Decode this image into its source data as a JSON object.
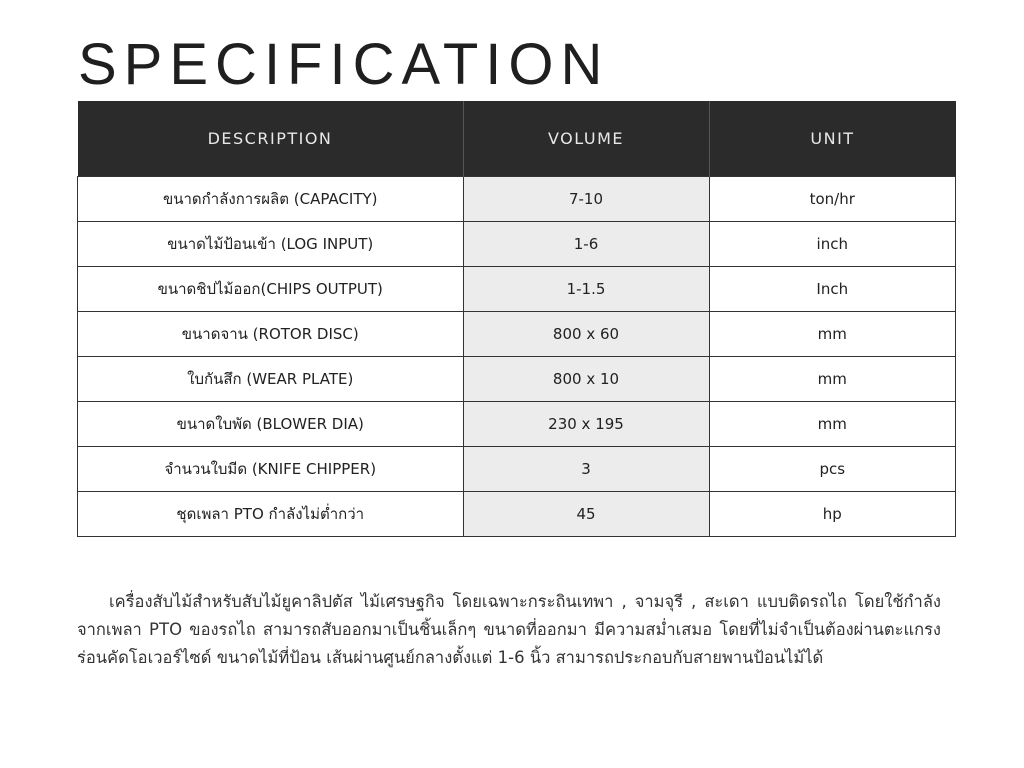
{
  "title": "SPECIFICATION",
  "table": {
    "headers": [
      "DESCRIPTION",
      "VOLUME",
      "UNIT"
    ],
    "rows": [
      {
        "description": "ขนาดกำลังการผลิต (CAPACITY)",
        "volume": "7-10",
        "unit": "ton/hr"
      },
      {
        "description": "ขนาดไม้ป้อนเข้า (LOG INPUT)",
        "volume": "1-6",
        "unit": "inch"
      },
      {
        "description": "ขนาดชิปไม้ออก(CHIPS OUTPUT)",
        "volume": "1-1.5",
        "unit": "Inch"
      },
      {
        "description": "ขนาดจาน (ROTOR DISC)",
        "volume": "800 x 60",
        "unit": "mm"
      },
      {
        "description": "ใบกันสึก (WEAR PLATE)",
        "volume": "800 x 10",
        "unit": "mm"
      },
      {
        "description": "ขนาดใบพัด (BLOWER DIA)",
        "volume": "230 x 195",
        "unit": "mm"
      },
      {
        "description": "จำนวนใบมีด (KNIFE CHIPPER)",
        "volume": "3",
        "unit": "pcs"
      },
      {
        "description": "ชุดเพลา PTO กำลังไม่ต่ำกว่า",
        "volume": "45",
        "unit": "hp"
      }
    ]
  },
  "description": "เครื่องสับไม้สำหรับสับไม้ยูคาลิปตัส ไม้เศรษฐกิจ โดยเฉพาะกระถินเทพา , จามจุรี , สะเดา แบบติดรถไถ โดยใช้กำลังจากเพลา PTO ของรถไถ สามารถสับออกมาเป็นชิ้นเล็กๆ ขนาดที่ออกมา มีความสม่ำเสมอ โดยที่ไม่จำเป็นต้องผ่านตะแกรงร่อนคัดโอเวอร์ไซด์ ขนาดไม้ที่ป้อน เส้นผ่านศูนย์กลางตั้งแต่ 1-6 นิ้ว สามารถประกอบกับสายพานป้อนไม้ได้",
  "colors": {
    "header_bg": "#2b2b2b",
    "volume_bg": "#ececec"
  }
}
